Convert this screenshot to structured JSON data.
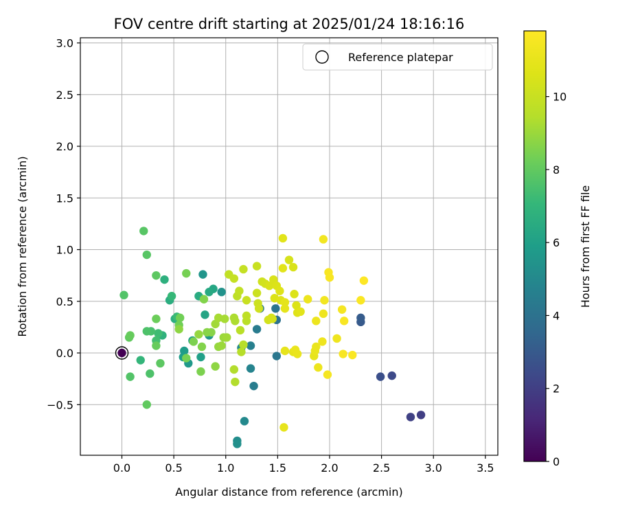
{
  "chart_data": {
    "type": "scatter",
    "title": "FOV centre drift starting at 2025/01/24 18:16:16",
    "xlabel": "Angular distance from reference (arcmin)",
    "ylabel": "Rotation from reference (arcmin)",
    "xlim": [
      -0.4,
      3.62
    ],
    "ylim": [
      -0.99,
      3.05
    ],
    "xticks": [
      0.0,
      0.5,
      1.0,
      1.5,
      2.0,
      2.5,
      3.0,
      3.5
    ],
    "xtick_labels": [
      "0.0",
      "0.5",
      "1.0",
      "1.5",
      "2.0",
      "2.5",
      "3.0",
      "3.5"
    ],
    "yticks": [
      -0.5,
      0.0,
      0.5,
      1.0,
      1.5,
      2.0,
      2.5,
      3.0
    ],
    "ytick_labels": [
      "−0.5",
      "0.0",
      "0.5",
      "1.0",
      "1.5",
      "2.0",
      "2.5",
      "3.0"
    ],
    "grid": true,
    "legend": {
      "placement": "top-right",
      "entries": [
        "Reference platepar"
      ]
    },
    "colorbar": {
      "label": "Hours from first FF file",
      "colormap": "viridis",
      "range": [
        0,
        11.8
      ],
      "ticks": [
        0,
        2,
        4,
        6,
        8,
        10
      ],
      "tick_labels": [
        "0",
        "2",
        "4",
        "6",
        "8",
        "10"
      ]
    },
    "reference_point": {
      "x": 0.0,
      "y": 0.0,
      "hours": 0
    },
    "points": [
      {
        "x": 2.88,
        "y": -0.6,
        "hours": 2.0
      },
      {
        "x": 2.78,
        "y": -0.62,
        "hours": 2.1
      },
      {
        "x": 2.6,
        "y": -0.22,
        "hours": 2.4
      },
      {
        "x": 2.49,
        "y": -0.23,
        "hours": 2.6
      },
      {
        "x": 2.3,
        "y": 0.3,
        "hours": 3.0
      },
      {
        "x": 2.3,
        "y": 0.34,
        "hours": 3.1
      },
      {
        "x": 1.49,
        "y": 0.32,
        "hours": 4.0
      },
      {
        "x": 1.48,
        "y": 0.43,
        "hours": 4.1
      },
      {
        "x": 1.49,
        "y": -0.03,
        "hours": 4.2
      },
      {
        "x": 1.33,
        "y": 0.43,
        "hours": 4.3
      },
      {
        "x": 1.3,
        "y": 0.23,
        "hours": 4.4
      },
      {
        "x": 1.27,
        "y": -0.32,
        "hours": 4.5
      },
      {
        "x": 1.24,
        "y": 0.07,
        "hours": 4.6
      },
      {
        "x": 1.24,
        "y": -0.15,
        "hours": 4.8
      },
      {
        "x": 1.18,
        "y": -0.66,
        "hours": 5.0
      },
      {
        "x": 1.15,
        "y": 0.05,
        "hours": 5.1
      },
      {
        "x": 1.11,
        "y": -0.85,
        "hours": 5.2
      },
      {
        "x": 1.11,
        "y": -0.88,
        "hours": 5.3
      },
      {
        "x": 0.96,
        "y": 0.59,
        "hours": 5.4
      },
      {
        "x": 0.78,
        "y": 0.76,
        "hours": 5.5
      },
      {
        "x": 0.84,
        "y": 0.17,
        "hours": 5.6
      },
      {
        "x": 0.64,
        "y": -0.1,
        "hours": 5.7
      },
      {
        "x": 0.6,
        "y": 0.02,
        "hours": 5.8
      },
      {
        "x": 0.59,
        "y": -0.04,
        "hours": 5.9
      },
      {
        "x": 0.76,
        "y": -0.04,
        "hours": 6.0
      },
      {
        "x": 0.68,
        "y": 0.12,
        "hours": 6.1
      },
      {
        "x": 0.8,
        "y": 0.37,
        "hours": 6.2
      },
      {
        "x": 0.88,
        "y": 0.62,
        "hours": 6.3
      },
      {
        "x": 0.84,
        "y": 0.59,
        "hours": 6.4
      },
      {
        "x": 0.74,
        "y": 0.55,
        "hours": 6.5
      },
      {
        "x": 0.51,
        "y": 0.33,
        "hours": 6.6
      },
      {
        "x": 0.46,
        "y": 0.51,
        "hours": 6.6
      },
      {
        "x": 0.41,
        "y": 0.71,
        "hours": 6.7
      },
      {
        "x": 0.39,
        "y": 0.17,
        "hours": 6.8
      },
      {
        "x": 0.18,
        "y": -0.07,
        "hours": 7.0
      },
      {
        "x": 0.48,
        "y": 0.55,
        "hours": 7.1
      },
      {
        "x": 0.53,
        "y": 0.35,
        "hours": 7.2
      },
      {
        "x": 0.35,
        "y": 0.19,
        "hours": 7.3
      },
      {
        "x": 0.33,
        "y": 0.12,
        "hours": 7.4
      },
      {
        "x": 0.28,
        "y": 0.21,
        "hours": 7.5
      },
      {
        "x": 0.24,
        "y": 0.21,
        "hours": 7.6
      },
      {
        "x": 0.27,
        "y": -0.2,
        "hours": 7.6
      },
      {
        "x": 0.08,
        "y": -0.23,
        "hours": 7.7
      },
      {
        "x": 0.02,
        "y": 0.56,
        "hours": 7.7
      },
      {
        "x": 0.21,
        "y": 1.18,
        "hours": 7.8
      },
      {
        "x": 0.24,
        "y": 0.95,
        "hours": 7.8
      },
      {
        "x": 0.33,
        "y": 0.75,
        "hours": 7.9
      },
      {
        "x": 0.37,
        "y": -0.1,
        "hours": 7.9
      },
      {
        "x": 0.24,
        "y": -0.5,
        "hours": 8.0
      },
      {
        "x": 0.07,
        "y": 0.15,
        "hours": 8.0
      },
      {
        "x": 0.08,
        "y": 0.17,
        "hours": 8.1
      },
      {
        "x": 0.33,
        "y": 0.07,
        "hours": 8.1
      },
      {
        "x": 0.33,
        "y": 0.33,
        "hours": 8.2
      },
      {
        "x": 0.55,
        "y": 0.27,
        "hours": 8.3
      },
      {
        "x": 0.56,
        "y": 0.34,
        "hours": 8.3
      },
      {
        "x": 0.62,
        "y": 0.77,
        "hours": 8.4
      },
      {
        "x": 0.62,
        "y": -0.05,
        "hours": 8.4
      },
      {
        "x": 0.69,
        "y": 0.11,
        "hours": 8.5
      },
      {
        "x": 0.76,
        "y": -0.18,
        "hours": 8.5
      },
      {
        "x": 0.77,
        "y": 0.06,
        "hours": 8.6
      },
      {
        "x": 0.79,
        "y": 0.52,
        "hours": 8.6
      },
      {
        "x": 0.82,
        "y": 0.2,
        "hours": 8.7
      },
      {
        "x": 0.86,
        "y": 0.2,
        "hours": 8.7
      },
      {
        "x": 0.9,
        "y": -0.13,
        "hours": 8.8
      },
      {
        "x": 0.55,
        "y": 0.23,
        "hours": 8.8
      },
      {
        "x": 0.74,
        "y": 0.18,
        "hours": 8.9
      },
      {
        "x": 0.93,
        "y": 0.06,
        "hours": 8.9
      },
      {
        "x": 0.96,
        "y": 0.07,
        "hours": 9.0
      },
      {
        "x": 0.98,
        "y": 0.15,
        "hours": 9.0
      },
      {
        "x": 1.01,
        "y": 0.15,
        "hours": 9.1
      },
      {
        "x": 0.9,
        "y": 0.28,
        "hours": 9.1
      },
      {
        "x": 0.93,
        "y": 0.34,
        "hours": 9.2
      },
      {
        "x": 0.99,
        "y": 0.33,
        "hours": 9.2
      },
      {
        "x": 1.08,
        "y": 0.34,
        "hours": 9.3
      },
      {
        "x": 1.09,
        "y": 0.31,
        "hours": 9.3
      },
      {
        "x": 1.08,
        "y": -0.16,
        "hours": 9.4
      },
      {
        "x": 1.09,
        "y": -0.28,
        "hours": 9.4
      },
      {
        "x": 1.15,
        "y": 0.01,
        "hours": 9.5
      },
      {
        "x": 1.17,
        "y": 0.08,
        "hours": 9.5
      },
      {
        "x": 1.14,
        "y": 0.22,
        "hours": 9.6
      },
      {
        "x": 1.2,
        "y": 0.31,
        "hours": 9.6
      },
      {
        "x": 1.2,
        "y": 0.36,
        "hours": 9.7
      },
      {
        "x": 1.11,
        "y": 0.55,
        "hours": 9.7
      },
      {
        "x": 1.13,
        "y": 0.6,
        "hours": 9.8
      },
      {
        "x": 1.03,
        "y": 0.76,
        "hours": 9.8
      },
      {
        "x": 1.08,
        "y": 0.72,
        "hours": 9.9
      },
      {
        "x": 1.17,
        "y": 0.81,
        "hours": 9.9
      },
      {
        "x": 1.2,
        "y": 0.51,
        "hours": 10.0
      },
      {
        "x": 1.3,
        "y": 0.84,
        "hours": 10.0
      },
      {
        "x": 1.3,
        "y": 0.58,
        "hours": 10.1
      },
      {
        "x": 1.31,
        "y": 0.48,
        "hours": 10.1
      },
      {
        "x": 1.32,
        "y": 0.43,
        "hours": 10.2
      },
      {
        "x": 1.35,
        "y": 0.69,
        "hours": 10.2
      },
      {
        "x": 1.38,
        "y": 0.67,
        "hours": 10.3
      },
      {
        "x": 1.41,
        "y": 0.32,
        "hours": 10.3
      },
      {
        "x": 1.44,
        "y": 0.34,
        "hours": 10.4
      },
      {
        "x": 1.45,
        "y": 0.33,
        "hours": 10.4
      },
      {
        "x": 1.42,
        "y": 0.65,
        "hours": 10.5
      },
      {
        "x": 1.46,
        "y": 0.71,
        "hours": 10.5
      },
      {
        "x": 1.49,
        "y": 0.65,
        "hours": 10.6
      },
      {
        "x": 1.47,
        "y": 0.53,
        "hours": 10.6
      },
      {
        "x": 1.52,
        "y": 0.6,
        "hours": 10.7
      },
      {
        "x": 1.53,
        "y": 0.51,
        "hours": 10.7
      },
      {
        "x": 1.55,
        "y": 0.82,
        "hours": 10.8
      },
      {
        "x": 1.55,
        "y": 1.11,
        "hours": 10.8
      },
      {
        "x": 1.57,
        "y": 0.43,
        "hours": 10.9
      },
      {
        "x": 1.57,
        "y": 0.49,
        "hours": 10.9
      },
      {
        "x": 1.57,
        "y": 0.02,
        "hours": 11.0
      },
      {
        "x": 1.56,
        "y": -0.72,
        "hours": 11.0
      },
      {
        "x": 1.61,
        "y": 0.9,
        "hours": 10.4
      },
      {
        "x": 1.65,
        "y": 0.83,
        "hours": 10.5
      },
      {
        "x": 1.66,
        "y": 0.57,
        "hours": 10.6
      },
      {
        "x": 1.68,
        "y": 0.46,
        "hours": 10.6
      },
      {
        "x": 1.69,
        "y": 0.39,
        "hours": 10.7
      },
      {
        "x": 1.72,
        "y": 0.4,
        "hours": 10.8
      },
      {
        "x": 1.65,
        "y": 0.01,
        "hours": 11.0
      },
      {
        "x": 1.67,
        "y": 0.03,
        "hours": 11.1
      },
      {
        "x": 1.69,
        "y": -0.01,
        "hours": 11.1
      },
      {
        "x": 1.79,
        "y": 0.52,
        "hours": 11.2
      },
      {
        "x": 1.85,
        "y": -0.03,
        "hours": 11.0
      },
      {
        "x": 1.86,
        "y": 0.02,
        "hours": 11.1
      },
      {
        "x": 1.87,
        "y": 0.06,
        "hours": 11.1
      },
      {
        "x": 1.87,
        "y": 0.31,
        "hours": 11.2
      },
      {
        "x": 1.89,
        "y": -0.14,
        "hours": 11.2
      },
      {
        "x": 1.93,
        "y": 0.11,
        "hours": 11.3
      },
      {
        "x": 1.94,
        "y": 0.38,
        "hours": 11.3
      },
      {
        "x": 1.95,
        "y": 0.51,
        "hours": 11.4
      },
      {
        "x": 1.94,
        "y": 1.1,
        "hours": 11.4
      },
      {
        "x": 1.98,
        "y": -0.21,
        "hours": 11.5
      },
      {
        "x": 1.99,
        "y": 0.78,
        "hours": 11.6
      },
      {
        "x": 2.0,
        "y": 0.73,
        "hours": 11.6
      },
      {
        "x": 2.07,
        "y": 0.14,
        "hours": 11.3
      },
      {
        "x": 2.12,
        "y": 0.42,
        "hours": 11.5
      },
      {
        "x": 2.14,
        "y": 0.31,
        "hours": 11.6
      },
      {
        "x": 2.13,
        "y": -0.01,
        "hours": 11.6
      },
      {
        "x": 2.22,
        "y": -0.02,
        "hours": 11.7
      },
      {
        "x": 2.3,
        "y": 0.51,
        "hours": 11.7
      },
      {
        "x": 2.33,
        "y": 0.7,
        "hours": 11.8
      }
    ]
  }
}
